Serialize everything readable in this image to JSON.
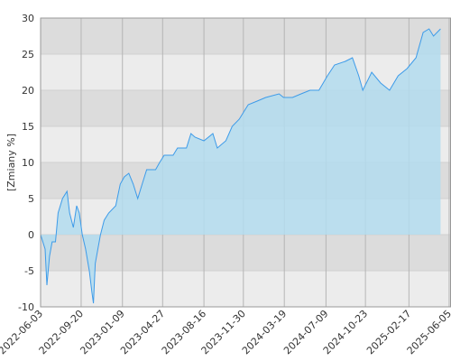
{
  "chart_data": {
    "type": "area",
    "y_label": "[Zmiany %]",
    "x": [
      "2022-06-03",
      "2022-06-15",
      "2022-06-20",
      "2022-06-27",
      "2022-07-04",
      "2022-07-13",
      "2022-07-20",
      "2022-08-01",
      "2022-08-13",
      "2022-08-20",
      "2022-08-30",
      "2022-09-08",
      "2022-09-15",
      "2022-09-23",
      "2022-10-02",
      "2022-10-12",
      "2022-10-19",
      "2022-10-23",
      "2022-10-28",
      "2022-11-04",
      "2022-11-11",
      "2022-11-21",
      "2022-12-03",
      "2022-12-22",
      "2023-01-03",
      "2023-01-14",
      "2023-01-26",
      "2023-02-07",
      "2023-02-19",
      "2023-03-03",
      "2023-03-15",
      "2023-04-08",
      "2023-04-19",
      "2023-05-01",
      "2023-05-25",
      "2023-06-06",
      "2023-06-30",
      "2023-07-12",
      "2023-07-23",
      "2023-08-16",
      "2023-09-09",
      "2023-09-21",
      "2023-10-14",
      "2023-10-31",
      "2023-11-19",
      "2023-12-01",
      "2023-12-13",
      "2024-01-06",
      "2024-01-29",
      "2024-03-05",
      "2024-03-17",
      "2024-04-10",
      "2024-05-03",
      "2024-05-27",
      "2024-06-20",
      "2024-07-13",
      "2024-08-01",
      "2024-08-30",
      "2024-09-18",
      "2024-10-05",
      "2024-10-16",
      "2024-11-09",
      "2024-12-03",
      "2024-12-27",
      "2025-01-19",
      "2025-02-12",
      "2025-03-08",
      "2025-03-27",
      "2025-04-12",
      "2025-04-24",
      "2025-05-13"
    ],
    "series": [
      {
        "color": "#3d9be9",
        "fill": "#b3dcee",
        "values": [
          0,
          -2,
          -7,
          -3,
          -1,
          -1,
          3,
          5,
          6,
          3,
          1,
          4,
          3,
          0,
          -2,
          -5,
          -8,
          -9.5,
          -4,
          -2,
          0,
          2,
          3,
          4,
          7,
          8,
          8.5,
          7,
          5,
          7,
          9,
          9,
          10,
          11,
          11,
          12,
          12,
          14,
          13.5,
          13,
          14,
          12,
          13,
          15,
          16,
          17,
          18,
          18.5,
          19,
          19.5,
          19,
          19,
          19.5,
          20,
          20,
          22,
          23.5,
          24,
          24.5,
          22,
          20,
          22.5,
          21,
          20,
          22,
          23,
          24.5,
          28,
          28.5,
          27.5,
          28.5
        ]
      }
    ],
    "xlim": [
      "2022-06-03",
      "2025-06-10"
    ],
    "xticks": [
      "2022-06-03",
      "2022-09-20",
      "2023-01-09",
      "2023-04-27",
      "2023-08-16",
      "2023-11-30",
      "2024-03-19",
      "2024-07-09",
      "2024-10-23",
      "2025-02-17",
      "2025-06-05"
    ],
    "ylim": [
      -10,
      30
    ],
    "yticks": [
      -10,
      -5,
      0,
      5,
      10,
      15,
      20,
      25,
      30
    ]
  }
}
